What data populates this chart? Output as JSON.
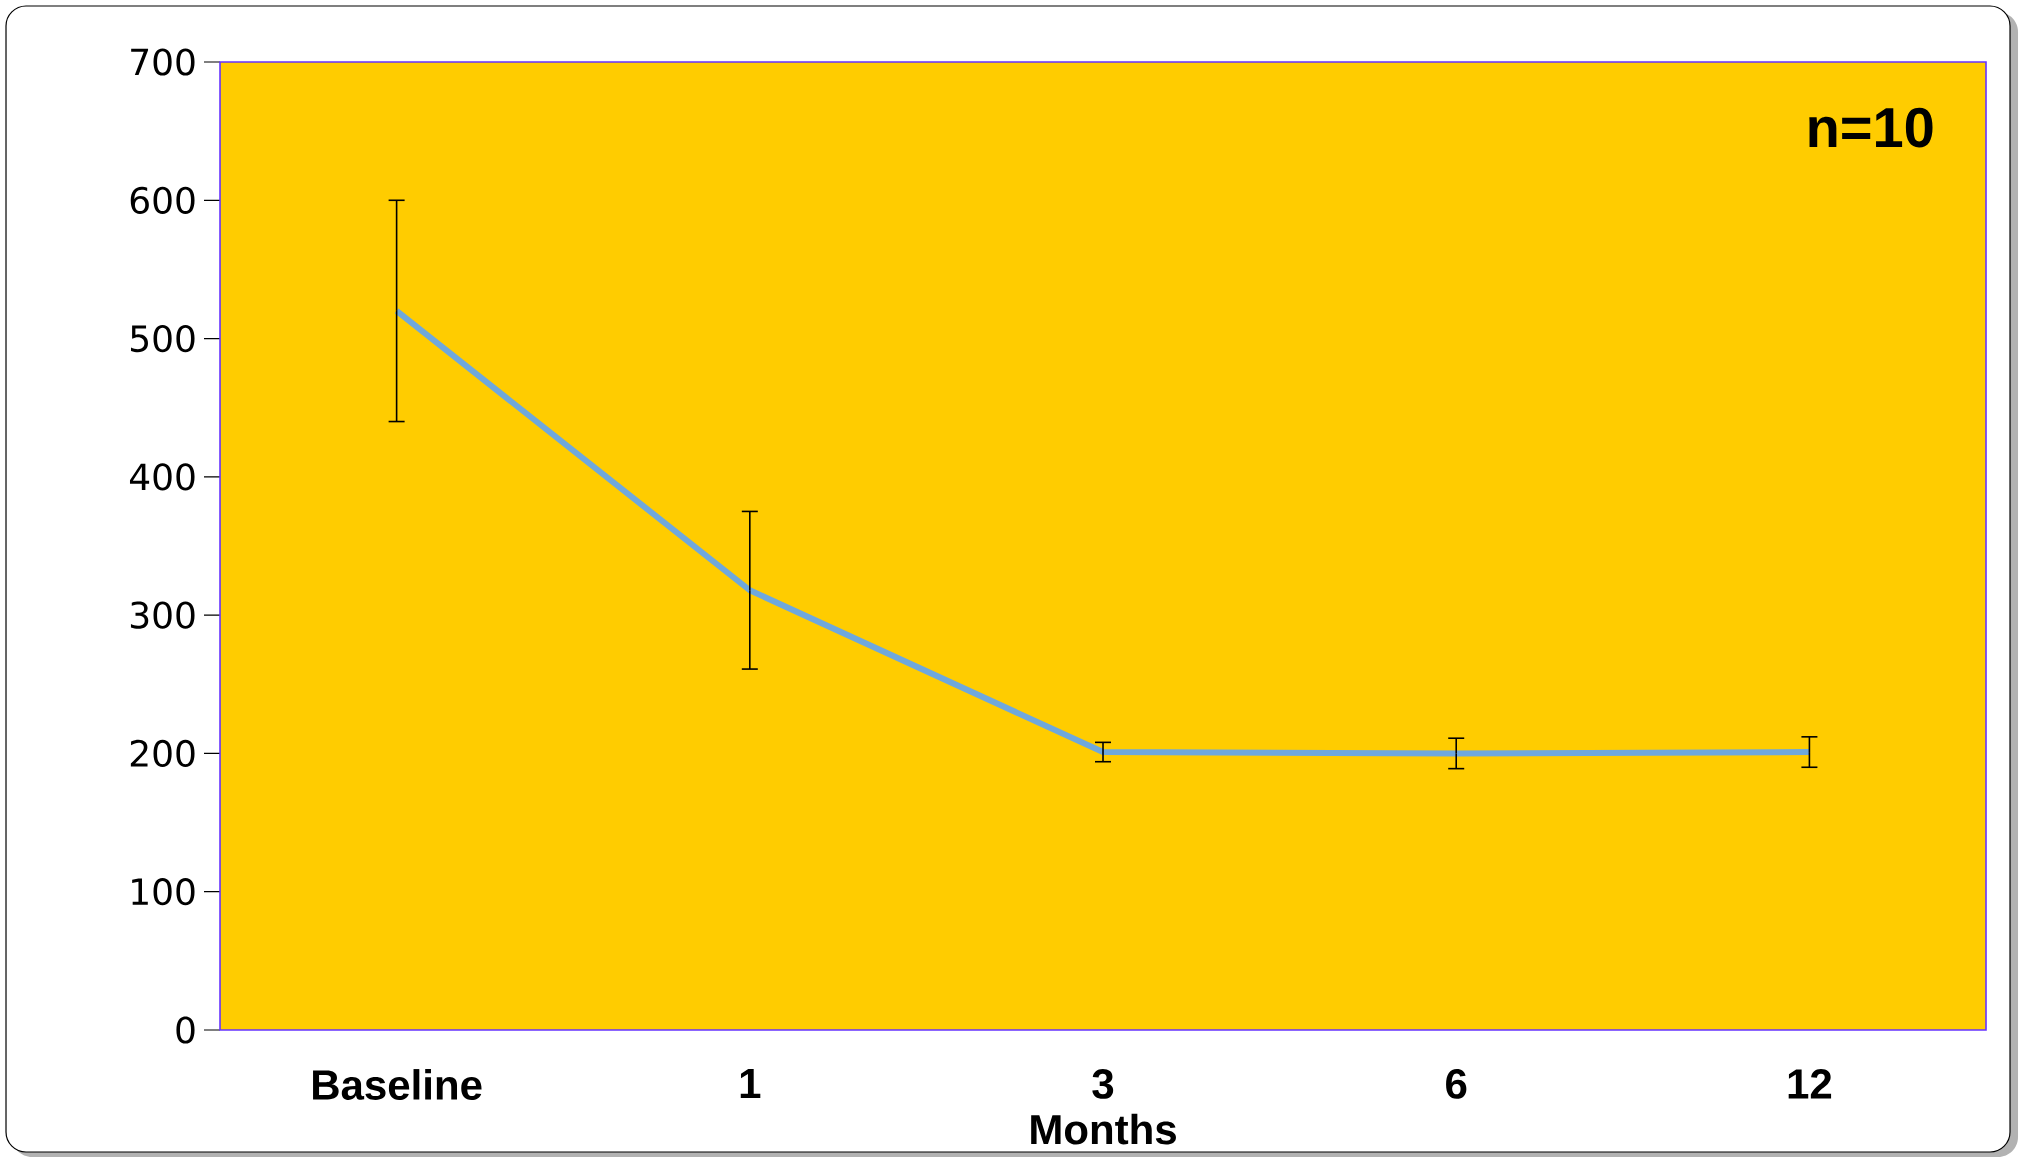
{
  "chart_data": {
    "type": "line",
    "categories": [
      "Baseline",
      "1",
      "3",
      "6",
      "12"
    ],
    "values": [
      520,
      318,
      201,
      200,
      201
    ],
    "errors": [
      80,
      57,
      7,
      11,
      11
    ],
    "color": "#6fa8dc",
    "ylim": [
      0,
      700
    ],
    "yticks": [
      0,
      100,
      200,
      300,
      400,
      500,
      600,
      700
    ],
    "xlabel": "Months",
    "annotations": [
      "n=10"
    ]
  }
}
